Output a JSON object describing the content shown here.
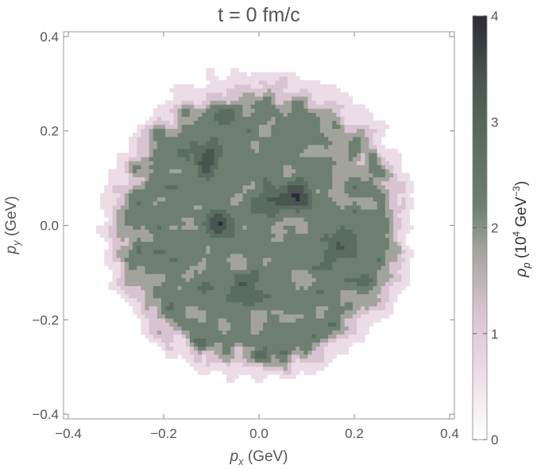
{
  "chart_data": {
    "type": "contour",
    "title": "t = 0 fm/c",
    "xlabel": {
      "main": "p",
      "sub": "x",
      "unit": " (GeV)"
    },
    "ylabel": {
      "main": "p",
      "sub": "y",
      "unit": " (GeV)"
    },
    "xlim": [
      -0.41,
      0.41
    ],
    "ylim": [
      -0.41,
      0.41
    ],
    "xticks": [
      -0.4,
      -0.2,
      0.0,
      0.2,
      0.4
    ],
    "yticks": [
      -0.4,
      -0.2,
      0.0,
      0.2,
      0.4
    ],
    "xtick_labels": [
      "−0.4",
      "−0.2",
      "0.0",
      "0.2",
      "0.4"
    ],
    "ytick_labels": [
      "−0.4",
      "−0.2",
      "0.0",
      "0.2",
      "0.4"
    ],
    "distribution": {
      "shape": "noisy disk",
      "center": [
        0.0,
        0.0
      ],
      "radius": 0.3,
      "plateau_level": 2.2,
      "hotspots": [
        {
          "x": -0.08,
          "y": 0.0,
          "level": 3.8
        },
        {
          "x": 0.08,
          "y": 0.06,
          "level": 3.9
        },
        {
          "x": -0.11,
          "y": 0.15,
          "level": 3.4
        },
        {
          "x": -0.03,
          "y": -0.13,
          "level": 3.5
        },
        {
          "x": 0.17,
          "y": -0.05,
          "level": 3.3
        },
        {
          "x": 0.02,
          "y": 0.06,
          "level": 3.0
        }
      ]
    },
    "colorbar": {
      "label_main": "ρ",
      "label_sub": "p",
      "label_unit_pre": " (10",
      "label_unit_exp": "4",
      "label_unit_mid": " GeV",
      "label_unit_exp2": "−3",
      "label_unit_post": ")",
      "range": [
        0,
        4
      ],
      "ticks": [
        0,
        1,
        2,
        3,
        4
      ],
      "tick_labels": [
        "0",
        "1",
        "2",
        "3",
        "4"
      ],
      "colors": [
        "#ffffff",
        "#ecdce6",
        "#d8c4d0",
        "#a2a39d",
        "#6e7f72",
        "#5a6d60",
        "#4a5550",
        "#2c2c36"
      ]
    }
  }
}
